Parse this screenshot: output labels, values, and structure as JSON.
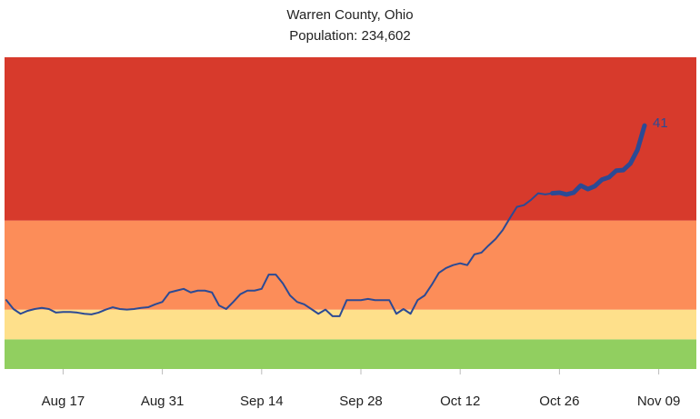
{
  "chart_data": {
    "type": "line",
    "title": "Warren County, Ohio",
    "subtitle": "Population: 234,602",
    "categories": [
      null,
      null,
      null,
      null,
      null,
      null,
      null,
      null,
      "Aug 17",
      null,
      null,
      null,
      null,
      null,
      null,
      null,
      null,
      null,
      null,
      null,
      null,
      null,
      "Aug 31",
      null,
      null,
      null,
      null,
      null,
      null,
      null,
      null,
      null,
      null,
      null,
      null,
      null,
      "Sep 14",
      null,
      null,
      null,
      null,
      null,
      null,
      null,
      null,
      null,
      null,
      null,
      null,
      null,
      "Sep 28",
      null,
      null,
      null,
      null,
      null,
      null,
      null,
      null,
      null,
      null,
      null,
      null,
      null,
      "Oct 12",
      null,
      null,
      null,
      null,
      null,
      null,
      null,
      null,
      null,
      null,
      null,
      null,
      null,
      "Oct 26",
      null,
      null,
      null,
      null,
      null,
      null,
      null,
      null,
      null,
      null,
      null,
      null,
      null,
      "Nov 09"
    ],
    "series": [
      {
        "color": "#2c4a94",
        "width": 2,
        "values": [
          11.6,
          10.1,
          9.3,
          9.8,
          10.1,
          10.3,
          10.1,
          9.5,
          9.6,
          9.6,
          9.5,
          9.3,
          9.2,
          9.5,
          10.0,
          10.4,
          10.1,
          10.0,
          10.1,
          10.3,
          10.4,
          10.9,
          11.3,
          12.9,
          13.2,
          13.5,
          12.9,
          13.2,
          13.2,
          12.9,
          10.7,
          10.1,
          11.3,
          12.6,
          13.2,
          13.2,
          13.5,
          15.9,
          15.9,
          14.4,
          12.4,
          11.3,
          10.9,
          10.1,
          9.3,
          10.0,
          8.9,
          8.9,
          11.6,
          11.6,
          11.6,
          11.8,
          11.6,
          11.6,
          11.6,
          9.3,
          10.1,
          9.3,
          11.6,
          12.4,
          14.2,
          16.2,
          17.0,
          17.5,
          17.8,
          17.5,
          19.3,
          19.6,
          20.8,
          21.9,
          23.4,
          25.4,
          27.3,
          27.6,
          28.5,
          29.6,
          29.4,
          29.6,
          null,
          null,
          null,
          null,
          null,
          null,
          null,
          null,
          null,
          null,
          null,
          null,
          null,
          null,
          null
        ]
      },
      {
        "color": "#2c4a94",
        "width": 5,
        "values": [
          null,
          null,
          null,
          null,
          null,
          null,
          null,
          null,
          null,
          null,
          null,
          null,
          null,
          null,
          null,
          null,
          null,
          null,
          null,
          null,
          null,
          null,
          null,
          null,
          null,
          null,
          null,
          null,
          null,
          null,
          null,
          null,
          null,
          null,
          null,
          null,
          null,
          null,
          null,
          null,
          null,
          null,
          null,
          null,
          null,
          null,
          null,
          null,
          null,
          null,
          null,
          null,
          null,
          null,
          null,
          null,
          null,
          null,
          null,
          null,
          null,
          null,
          null,
          null,
          null,
          null,
          null,
          null,
          null,
          null,
          null,
          null,
          null,
          null,
          null,
          null,
          null,
          29.6,
          29.7,
          29.4,
          29.7,
          30.9,
          30.3,
          30.8,
          31.9,
          32.3,
          33.4,
          33.5,
          34.6,
          36.9,
          41,
          null,
          null
        ]
      }
    ],
    "ylim": [
      0,
      52.5
    ],
    "bands": [
      {
        "from": 0,
        "to": 5,
        "color": "#91cf60"
      },
      {
        "from": 5,
        "to": 10,
        "color": "#fee08b"
      },
      {
        "from": 10,
        "to": 25,
        "color": "#fc8d59"
      },
      {
        "from": 25,
        "to": 52.5,
        "color": "#d73a2c"
      }
    ]
  }
}
